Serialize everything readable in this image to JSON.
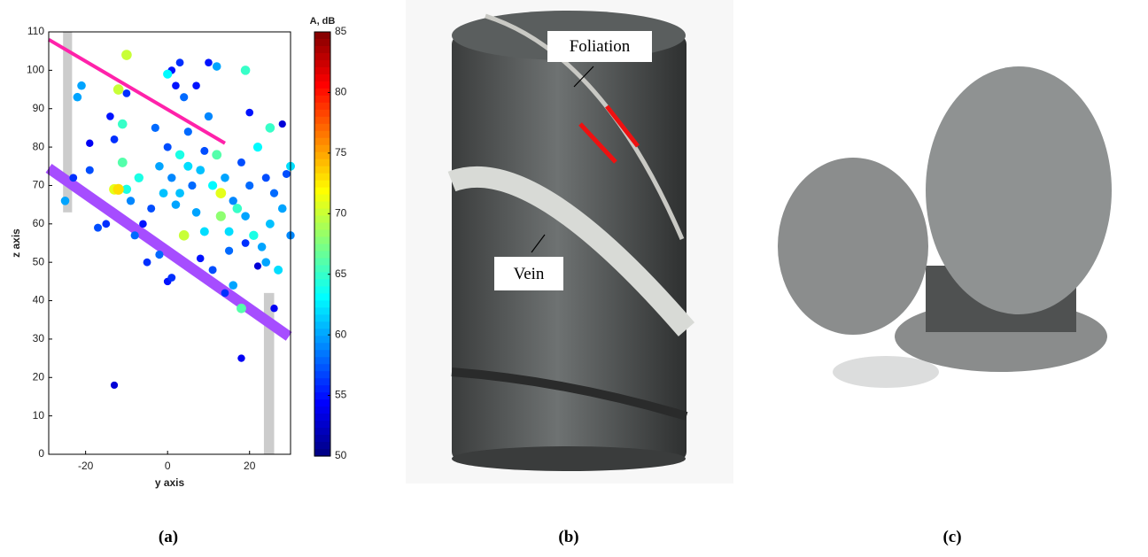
{
  "chart_data": {
    "type": "scatter",
    "xlabel": "y axis",
    "ylabel": "z axis",
    "colorbar_label": "A, dB",
    "xlim": [
      -29,
      30
    ],
    "ylim": [
      0,
      110
    ],
    "xticks": [
      -20,
      0,
      20
    ],
    "yticks": [
      0,
      10,
      20,
      30,
      40,
      50,
      60,
      70,
      80,
      90,
      100,
      110
    ],
    "clim": [
      50,
      85
    ],
    "cticks": [
      50,
      55,
      60,
      65,
      70,
      75,
      80,
      85
    ],
    "colormap": "jet",
    "x": [
      -13,
      18,
      -10,
      -12,
      -12,
      -13,
      4,
      -25,
      -21,
      -22,
      -19,
      -23,
      -17,
      -14,
      -13,
      -10,
      -11,
      -11,
      -10,
      -8,
      -5,
      0,
      1,
      2,
      3,
      4,
      7,
      10,
      12,
      19,
      -3,
      -2,
      0,
      1,
      3,
      2,
      5,
      6,
      8,
      9,
      10,
      11,
      12,
      13,
      13,
      14,
      15,
      16,
      17,
      18,
      19,
      20,
      21,
      22,
      23,
      24,
      25,
      25,
      26,
      27,
      28,
      29,
      30,
      30,
      -6,
      -4,
      0,
      1,
      8,
      11,
      14,
      16,
      18,
      26,
      22,
      5,
      -1,
      -7,
      -9,
      7,
      9,
      15,
      19,
      24,
      -15,
      20,
      28,
      -19,
      -2,
      3
    ],
    "y": [
      18,
      25,
      104,
      95,
      69,
      69,
      57,
      66,
      96,
      93,
      74,
      72,
      59,
      88,
      82,
      94,
      86,
      76,
      69,
      57,
      50,
      99,
      100,
      96,
      102,
      93,
      96,
      102,
      101,
      100,
      85,
      75,
      80,
      72,
      68,
      65,
      75,
      70,
      74,
      79,
      88,
      70,
      78,
      68,
      62,
      72,
      58,
      66,
      64,
      76,
      62,
      70,
      57,
      80,
      54,
      72,
      85,
      60,
      68,
      48,
      64,
      73,
      57,
      75,
      60,
      64,
      45,
      46,
      51,
      48,
      42,
      44,
      38,
      38,
      49,
      84,
      68,
      72,
      66,
      63,
      58,
      53,
      55,
      50,
      60,
      89,
      86,
      81,
      52,
      78
    ],
    "c": [
      53,
      54,
      70,
      70,
      73,
      71,
      70,
      60,
      60,
      60,
      57,
      56,
      57,
      55,
      56,
      56,
      65,
      66,
      64,
      58,
      56,
      63,
      55,
      55,
      56,
      58,
      55,
      55,
      60,
      65,
      58,
      60,
      57,
      59,
      61,
      60,
      62,
      58,
      61,
      57,
      59,
      63,
      66,
      71,
      68,
      60,
      62,
      59,
      65,
      57,
      60,
      58,
      64,
      63,
      60,
      57,
      65,
      61,
      58,
      62,
      60,
      57,
      59,
      62,
      55,
      57,
      55,
      56,
      55,
      57,
      56,
      60,
      66,
      54,
      53,
      58,
      61,
      64,
      59,
      60,
      62,
      58,
      56,
      60,
      56,
      55,
      53,
      54,
      58,
      64
    ],
    "overlay_lines": [
      {
        "color": "#ff22aa",
        "x": [
          -29,
          14
        ],
        "y": [
          108,
          81
        ]
      },
      {
        "color": "#a64dff",
        "x": [
          -29,
          29.6
        ],
        "y": [
          74.5,
          30.7
        ]
      }
    ],
    "overlay_bands": [
      {
        "color": "#cccccc",
        "x": [
          -25.5,
          -23.3
        ],
        "y": [
          63,
          110
        ]
      },
      {
        "color": "#cccccc",
        "x": [
          23.5,
          26
        ],
        "y": [
          0,
          42
        ]
      }
    ]
  },
  "panel_labels": [
    "(a)",
    "(b)",
    "(c)"
  ],
  "photo_annotations": {
    "foliation": "Foliation",
    "vein": "Vein"
  }
}
